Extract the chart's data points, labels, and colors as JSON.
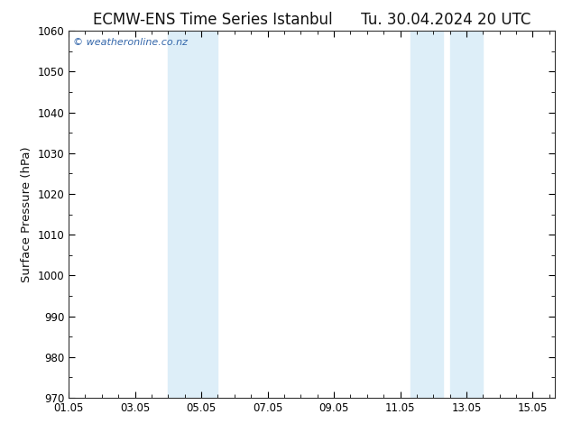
{
  "title_left": "ECMW-ENS Time Series Istanbul",
  "title_right": "Tu. 30.04.2024 20 UTC",
  "ylabel": "Surface Pressure (hPa)",
  "xlim": [
    1.0,
    15.667
  ],
  "ylim": [
    970,
    1060
  ],
  "yticks": [
    970,
    980,
    990,
    1000,
    1010,
    1020,
    1030,
    1040,
    1050,
    1060
  ],
  "xtick_labels": [
    "01.05",
    "03.05",
    "05.05",
    "07.05",
    "09.05",
    "11.05",
    "13.05",
    "15.05"
  ],
  "xtick_positions": [
    1,
    3,
    5,
    7,
    9,
    11,
    13,
    15
  ],
  "shaded_bands": [
    {
      "xmin": 4.0,
      "xmax": 5.5
    },
    {
      "xmin": 11.3,
      "xmax": 12.3
    },
    {
      "xmin": 12.5,
      "xmax": 13.5
    }
  ],
  "band_color": "#ddeef8",
  "background_color": "#ffffff",
  "plot_bg_color": "#ffffff",
  "watermark_text": "© weatheronline.co.nz",
  "watermark_color": "#3366aa",
  "title_fontsize": 12,
  "tick_fontsize": 8.5,
  "ylabel_fontsize": 9.5,
  "border_color": "#333333",
  "minor_tick_count": 3
}
